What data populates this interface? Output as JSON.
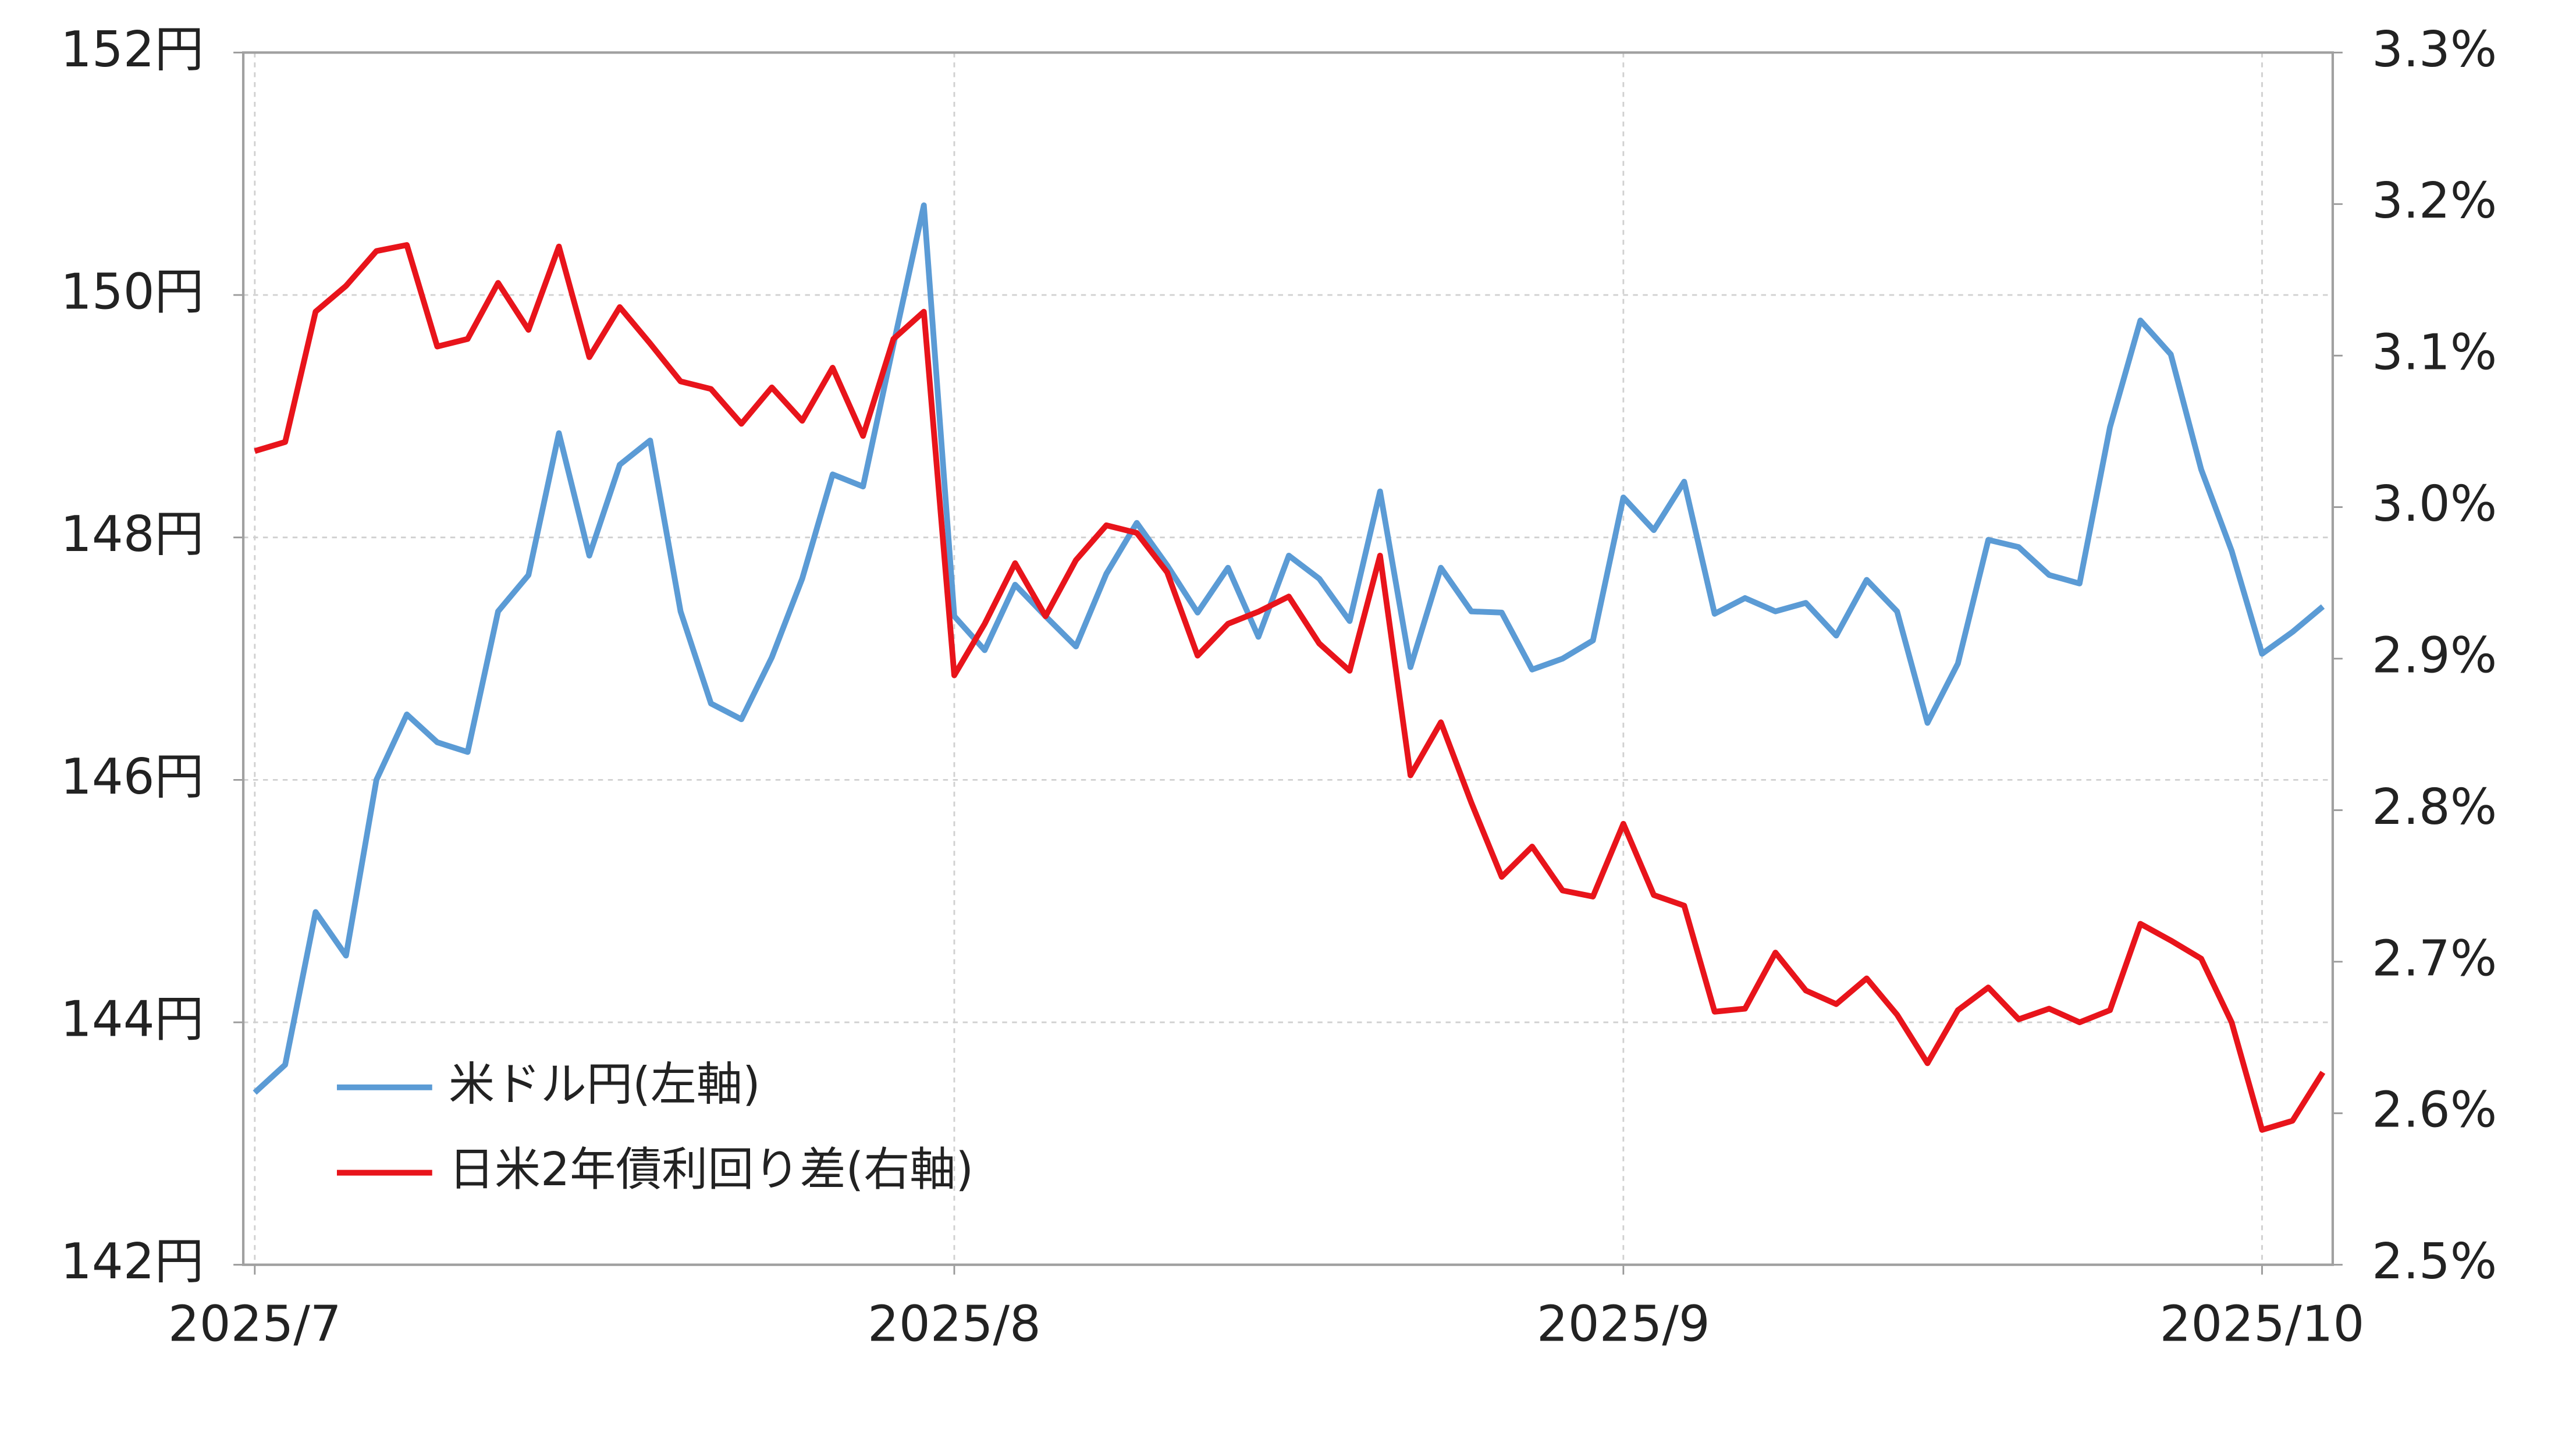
{
  "chart_data": {
    "type": "line",
    "categories": [
      "2025/7",
      null,
      null,
      null,
      null,
      null,
      null,
      null,
      null,
      null,
      null,
      null,
      null,
      null,
      null,
      null,
      null,
      null,
      null,
      null,
      null,
      null,
      null,
      "2025/8",
      null,
      null,
      null,
      null,
      null,
      null,
      null,
      null,
      null,
      null,
      null,
      null,
      null,
      null,
      null,
      null,
      null,
      null,
      null,
      null,
      null,
      "2025/9",
      null,
      null,
      null,
      null,
      null,
      null,
      null,
      null,
      null,
      null,
      null,
      null,
      null,
      null,
      null,
      null,
      null,
      null,
      null,
      null,
      "2025/10",
      null,
      null
    ],
    "series": [
      {
        "name": "米ドル円(左軸)",
        "color": "#5b9bd5",
        "axis": "y",
        "values": [
          143.42,
          143.65,
          144.91,
          144.55,
          146.0,
          146.54,
          146.31,
          146.23,
          147.39,
          147.69,
          148.86,
          147.85,
          148.6,
          148.8,
          147.39,
          146.63,
          146.5,
          147.01,
          147.66,
          148.52,
          148.42,
          149.59,
          150.74,
          147.35,
          147.07,
          147.61,
          147.35,
          147.1,
          147.7,
          148.12,
          147.77,
          147.38,
          147.75,
          147.18,
          147.85,
          147.66,
          147.31,
          148.38,
          146.93,
          147.75,
          147.39,
          147.38,
          146.91,
          147.0,
          147.15,
          148.33,
          148.06,
          148.46,
          147.37,
          147.5,
          147.39,
          147.46,
          147.19,
          147.65,
          147.39,
          146.47,
          146.96,
          147.98,
          147.92,
          147.69,
          147.62,
          148.91,
          149.79,
          149.51,
          148.56,
          147.89,
          147.04,
          147.22,
          147.43
        ]
      },
      {
        "name": "日米2年債利回り差(右軸)",
        "color": "#e8141b",
        "axis": "y2",
        "values": [
          3.037,
          3.043,
          3.129,
          3.146,
          3.169,
          3.173,
          3.106,
          3.111,
          3.148,
          3.117,
          3.172,
          3.099,
          3.132,
          3.108,
          3.083,
          3.078,
          3.055,
          3.079,
          3.057,
          3.092,
          3.047,
          3.111,
          3.129,
          2.889,
          2.923,
          2.963,
          2.928,
          2.965,
          2.988,
          2.983,
          2.957,
          2.902,
          2.923,
          2.931,
          2.941,
          2.91,
          2.892,
          2.968,
          2.823,
          2.858,
          2.805,
          2.756,
          2.776,
          2.747,
          2.743,
          2.791,
          2.744,
          2.737,
          2.667,
          2.669,
          2.706,
          2.681,
          2.672,
          2.689,
          2.665,
          2.633,
          2.668,
          2.683,
          2.662,
          2.669,
          2.66,
          2.668,
          2.725,
          2.714,
          2.702,
          2.66,
          2.589,
          2.595,
          2.627
        ]
      }
    ],
    "ylim": [
      142,
      152
    ],
    "yticks": [
      {
        "value": 142,
        "label": "142円"
      },
      {
        "value": 144,
        "label": "144円"
      },
      {
        "value": 146,
        "label": "146円"
      },
      {
        "value": 148,
        "label": "148円"
      },
      {
        "value": 150,
        "label": "150円"
      },
      {
        "value": 152,
        "label": "152円"
      }
    ],
    "y2lim": [
      2.5,
      3.3
    ],
    "y2ticks": [
      {
        "value": 2.5,
        "label": "2.5%"
      },
      {
        "value": 2.6,
        "label": "2.6%"
      },
      {
        "value": 2.7,
        "label": "2.7%"
      },
      {
        "value": 2.8,
        "label": "2.8%"
      },
      {
        "value": 2.9,
        "label": "2.9%"
      },
      {
        "value": 3.0,
        "label": "3.0%"
      },
      {
        "value": 3.1,
        "label": "3.1%"
      },
      {
        "value": 3.2,
        "label": "3.2%"
      },
      {
        "value": 3.3,
        "label": "3.3%"
      }
    ],
    "grid": true,
    "legend": "lower left"
  }
}
